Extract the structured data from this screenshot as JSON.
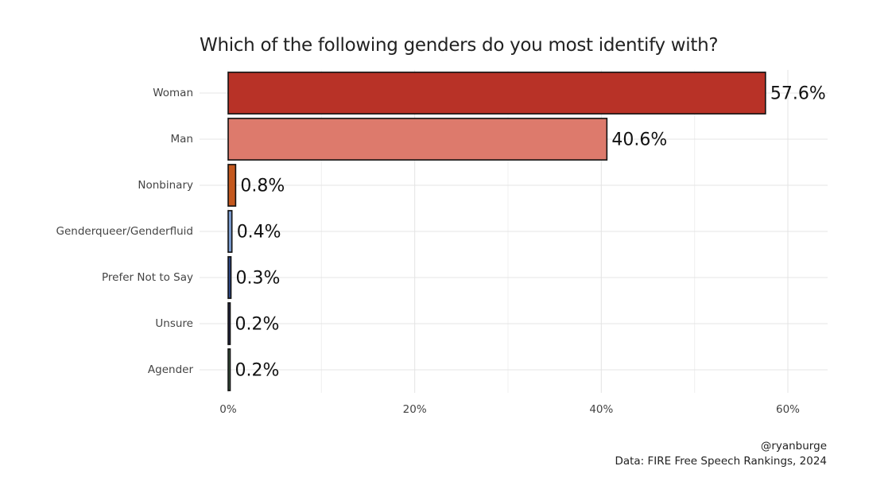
{
  "chart_data": {
    "type": "bar",
    "orientation": "horizontal",
    "title": "Which of the following genders do you most identify with?",
    "categories": [
      "Woman",
      "Man",
      "Nonbinary",
      "Genderqueer/Genderfluid",
      "Prefer Not to Say",
      "Unsure",
      "Agender"
    ],
    "values": [
      57.6,
      40.6,
      0.8,
      0.4,
      0.3,
      0.2,
      0.2
    ],
    "data_labels": [
      "57.6%",
      "40.6%",
      "0.8%",
      "0.4%",
      "0.3%",
      "0.2%",
      "0.2%"
    ],
    "colors": [
      "#b83227",
      "#dd7a6c",
      "#c4581e",
      "#7c9dd1",
      "#2f4a8a",
      "#2a2e54",
      "#4d6d52"
    ],
    "x_ticks": [
      0,
      20,
      40,
      60
    ],
    "x_tick_labels": [
      "0%",
      "20%",
      "40%",
      "60%"
    ],
    "xlim": [
      0,
      64.2
    ],
    "xlabel": "",
    "ylabel": "",
    "grid": true,
    "legend": "none"
  },
  "caption": {
    "line1": "@ryanburge",
    "line2": "Data: FIRE Free Speech Rankings, 2024"
  }
}
